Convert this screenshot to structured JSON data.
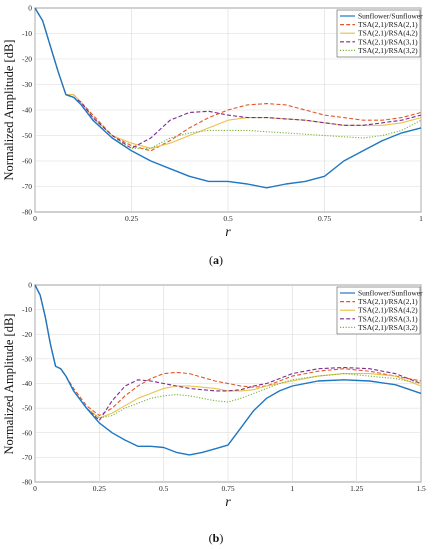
{
  "colors": {
    "sunflower": "#1f77c4",
    "tsa_rsa21": "#e2572a",
    "tsa_rsa42": "#eac24d",
    "tsa_rsa31": "#7a2c8d",
    "tsa_rsa32": "#7ab33a"
  },
  "chart_data": [
    {
      "type": "line",
      "panel_caption_letter": "a",
      "ylabel": "Normalized Amplitude [dB]",
      "xlabel": "r",
      "xlim": [
        0,
        1
      ],
      "ylim": [
        -80,
        0
      ],
      "xticks": [
        0,
        0.25,
        0.5,
        0.75,
        1
      ],
      "xtick_labels": [
        "0",
        "0.25",
        "0.5",
        "0.75",
        "1"
      ],
      "yticks": [
        0,
        -10,
        -20,
        -30,
        -40,
        -50,
        -60,
        -70,
        -80
      ],
      "ytick_labels": [
        "0",
        "-10",
        "-20",
        "-30",
        "-40",
        "-50",
        "-60",
        "-70",
        "-80"
      ],
      "grid": true,
      "legend_position": "top-right",
      "series": [
        {
          "name": "Sunflower/Sunflower",
          "style": "solid",
          "color_key": "sunflower",
          "x": [
            0,
            0.02,
            0.04,
            0.06,
            0.08,
            0.1,
            0.12,
            0.15,
            0.2,
            0.25,
            0.3,
            0.35,
            0.4,
            0.45,
            0.5,
            0.55,
            0.6,
            0.65,
            0.7,
            0.75,
            0.8,
            0.85,
            0.9,
            0.95,
            1.0
          ],
          "y": [
            0,
            -5,
            -15,
            -25,
            -34,
            -35,
            -38,
            -44,
            -51,
            -56,
            -60,
            -63,
            -66,
            -68,
            -68,
            -69,
            -70.5,
            -69,
            -68,
            -66,
            -60,
            -56,
            -52,
            -49,
            -47
          ]
        },
        {
          "name": "TSA(2,1)/RSA(2,1)",
          "style": "dashed",
          "color_key": "tsa_rsa21",
          "x": [
            0,
            0.02,
            0.04,
            0.06,
            0.08,
            0.1,
            0.12,
            0.15,
            0.2,
            0.25,
            0.3,
            0.35,
            0.4,
            0.45,
            0.5,
            0.55,
            0.6,
            0.65,
            0.7,
            0.75,
            0.8,
            0.85,
            0.9,
            0.95,
            1.0
          ],
          "y": [
            0,
            -5,
            -15,
            -25,
            -34,
            -34,
            -37,
            -42,
            -50,
            -54,
            -56,
            -52,
            -47,
            -43,
            -40,
            -38,
            -37.5,
            -38,
            -40,
            -42,
            -43,
            -44,
            -44,
            -43,
            -41
          ]
        },
        {
          "name": "TSA(2,1)/RSA(4,2)",
          "style": "solid",
          "color_key": "tsa_rsa42",
          "x": [
            0,
            0.02,
            0.04,
            0.06,
            0.08,
            0.1,
            0.12,
            0.15,
            0.2,
            0.25,
            0.3,
            0.35,
            0.4,
            0.45,
            0.5,
            0.55,
            0.6,
            0.65,
            0.7,
            0.75,
            0.8,
            0.85,
            0.9,
            0.95,
            1.0
          ],
          "y": [
            0,
            -5,
            -15,
            -25,
            -34,
            -34,
            -37,
            -43,
            -50,
            -53,
            -55,
            -53,
            -50,
            -47,
            -44,
            -43,
            -43,
            -43.5,
            -44,
            -45,
            -46,
            -46,
            -46,
            -45,
            -43
          ]
        },
        {
          "name": "TSA(2,1)/RSA(3,1)",
          "style": "dashed",
          "color_key": "tsa_rsa31",
          "x": [
            0,
            0.02,
            0.04,
            0.06,
            0.08,
            0.1,
            0.12,
            0.15,
            0.2,
            0.25,
            0.3,
            0.35,
            0.4,
            0.45,
            0.5,
            0.55,
            0.6,
            0.65,
            0.7,
            0.75,
            0.8,
            0.85,
            0.9,
            0.95,
            1.0
          ],
          "y": [
            0,
            -5,
            -15,
            -25,
            -34,
            -35,
            -37,
            -43,
            -50,
            -55,
            -51,
            -44,
            -41,
            -40.5,
            -42,
            -43,
            -43,
            -43.5,
            -44,
            -45,
            -46,
            -46,
            -45,
            -44,
            -42
          ]
        },
        {
          "name": "TSA(2,1)/RSA(3,2)",
          "style": "dotted",
          "color_key": "tsa_rsa32",
          "x": [
            0,
            0.02,
            0.04,
            0.06,
            0.08,
            0.1,
            0.12,
            0.15,
            0.2,
            0.25,
            0.3,
            0.35,
            0.4,
            0.45,
            0.5,
            0.55,
            0.6,
            0.65,
            0.7,
            0.75,
            0.8,
            0.85,
            0.9,
            0.95,
            1.0
          ],
          "y": [
            0,
            -5,
            -15,
            -25,
            -34,
            -35,
            -38,
            -44,
            -51,
            -55,
            -55,
            -51,
            -49,
            -48,
            -48,
            -48,
            -48.5,
            -49,
            -49.5,
            -50,
            -50.5,
            -51,
            -50,
            -48,
            -44
          ]
        }
      ]
    },
    {
      "type": "line",
      "panel_caption_letter": "b",
      "ylabel": "Normalized Amplitude [dB]",
      "xlabel": "r",
      "xlim": [
        0,
        1.5
      ],
      "ylim": [
        -80,
        0
      ],
      "xticks": [
        0,
        0.25,
        0.5,
        0.75,
        1,
        1.25,
        1.5
      ],
      "xtick_labels": [
        "0",
        "0.25",
        "0.5",
        "0.75",
        "1",
        "1.25",
        "1.5"
      ],
      "yticks": [
        0,
        -10,
        -20,
        -30,
        -40,
        -50,
        -60,
        -70,
        -80
      ],
      "ytick_labels": [
        "0",
        "-10",
        "-20",
        "-30",
        "-40",
        "-50",
        "-60",
        "-70",
        "-80"
      ],
      "grid": true,
      "legend_position": "top-right",
      "series": [
        {
          "name": "Sunflower/Sunflower",
          "style": "solid",
          "color_key": "sunflower",
          "x": [
            0,
            0.02,
            0.04,
            0.06,
            0.08,
            0.1,
            0.12,
            0.15,
            0.2,
            0.25,
            0.3,
            0.35,
            0.4,
            0.45,
            0.5,
            0.55,
            0.6,
            0.65,
            0.7,
            0.75,
            0.8,
            0.85,
            0.9,
            0.95,
            1.0,
            1.1,
            1.2,
            1.3,
            1.4,
            1.5
          ],
          "y": [
            0,
            -4,
            -13,
            -24,
            -33,
            -34,
            -37,
            -43,
            -50,
            -56,
            -60,
            -63,
            -65.5,
            -65.5,
            -66,
            -68,
            -69,
            -68,
            -66.5,
            -65,
            -58,
            -51,
            -46,
            -43,
            -41,
            -39,
            -38.5,
            -39,
            -40.5,
            -44
          ]
        },
        {
          "name": "TSA(2,1)/RSA(2,1)",
          "style": "dashed",
          "color_key": "tsa_rsa21",
          "x": [
            0,
            0.02,
            0.04,
            0.06,
            0.08,
            0.1,
            0.12,
            0.15,
            0.2,
            0.25,
            0.3,
            0.35,
            0.4,
            0.45,
            0.5,
            0.55,
            0.6,
            0.65,
            0.7,
            0.75,
            0.8,
            0.85,
            0.9,
            0.95,
            1.0,
            1.1,
            1.2,
            1.3,
            1.4,
            1.5
          ],
          "y": [
            0,
            -4,
            -13,
            -24,
            -33,
            -34,
            -37,
            -42,
            -49,
            -53,
            -50,
            -45,
            -41,
            -38,
            -36,
            -35.5,
            -36,
            -37.5,
            -39,
            -40,
            -41,
            -41.5,
            -41,
            -39,
            -37,
            -35,
            -34,
            -35,
            -37,
            -39
          ]
        },
        {
          "name": "TSA(2,1)/RSA(4,2)",
          "style": "solid",
          "color_key": "tsa_rsa42",
          "x": [
            0,
            0.02,
            0.04,
            0.06,
            0.08,
            0.1,
            0.12,
            0.15,
            0.2,
            0.25,
            0.3,
            0.35,
            0.4,
            0.45,
            0.5,
            0.55,
            0.6,
            0.65,
            0.7,
            0.75,
            0.8,
            0.85,
            0.9,
            0.95,
            1.0,
            1.1,
            1.2,
            1.3,
            1.4,
            1.5
          ],
          "y": [
            0,
            -4,
            -13,
            -24,
            -33,
            -34,
            -37,
            -43,
            -50,
            -54,
            -52,
            -49,
            -46,
            -44,
            -42,
            -41,
            -41,
            -41.5,
            -42,
            -43,
            -43,
            -42.5,
            -41,
            -40,
            -39,
            -37,
            -36,
            -36,
            -37,
            -41
          ]
        },
        {
          "name": "TSA(2,1)/RSA(3,1)",
          "style": "dashed",
          "color_key": "tsa_rsa31",
          "x": [
            0,
            0.02,
            0.04,
            0.06,
            0.08,
            0.1,
            0.12,
            0.15,
            0.2,
            0.25,
            0.3,
            0.35,
            0.4,
            0.45,
            0.5,
            0.55,
            0.6,
            0.65,
            0.7,
            0.75,
            0.8,
            0.85,
            0.9,
            0.95,
            1.0,
            1.1,
            1.2,
            1.3,
            1.4,
            1.5
          ],
          "y": [
            0,
            -4,
            -13,
            -24,
            -33,
            -34,
            -37,
            -43,
            -50,
            -55,
            -47,
            -41,
            -38.5,
            -39,
            -40,
            -41,
            -42,
            -42.5,
            -43,
            -43,
            -42.5,
            -41,
            -40,
            -38,
            -36,
            -34,
            -33.5,
            -34,
            -36,
            -40
          ]
        },
        {
          "name": "TSA(2,1)/RSA(3,2)",
          "style": "dotted",
          "color_key": "tsa_rsa32",
          "x": [
            0,
            0.02,
            0.04,
            0.06,
            0.08,
            0.1,
            0.12,
            0.15,
            0.2,
            0.25,
            0.3,
            0.35,
            0.4,
            0.45,
            0.5,
            0.55,
            0.6,
            0.65,
            0.7,
            0.75,
            0.8,
            0.85,
            0.9,
            0.95,
            1.0,
            1.1,
            1.2,
            1.3,
            1.4,
            1.5
          ],
          "y": [
            0,
            -4,
            -13,
            -24,
            -33,
            -34,
            -37,
            -43,
            -50,
            -54,
            -53,
            -50,
            -48,
            -46,
            -45,
            -44.5,
            -45,
            -46,
            -47,
            -47.5,
            -46,
            -44,
            -42,
            -40,
            -38.5,
            -37,
            -36,
            -37,
            -38,
            -40
          ]
        }
      ]
    }
  ]
}
